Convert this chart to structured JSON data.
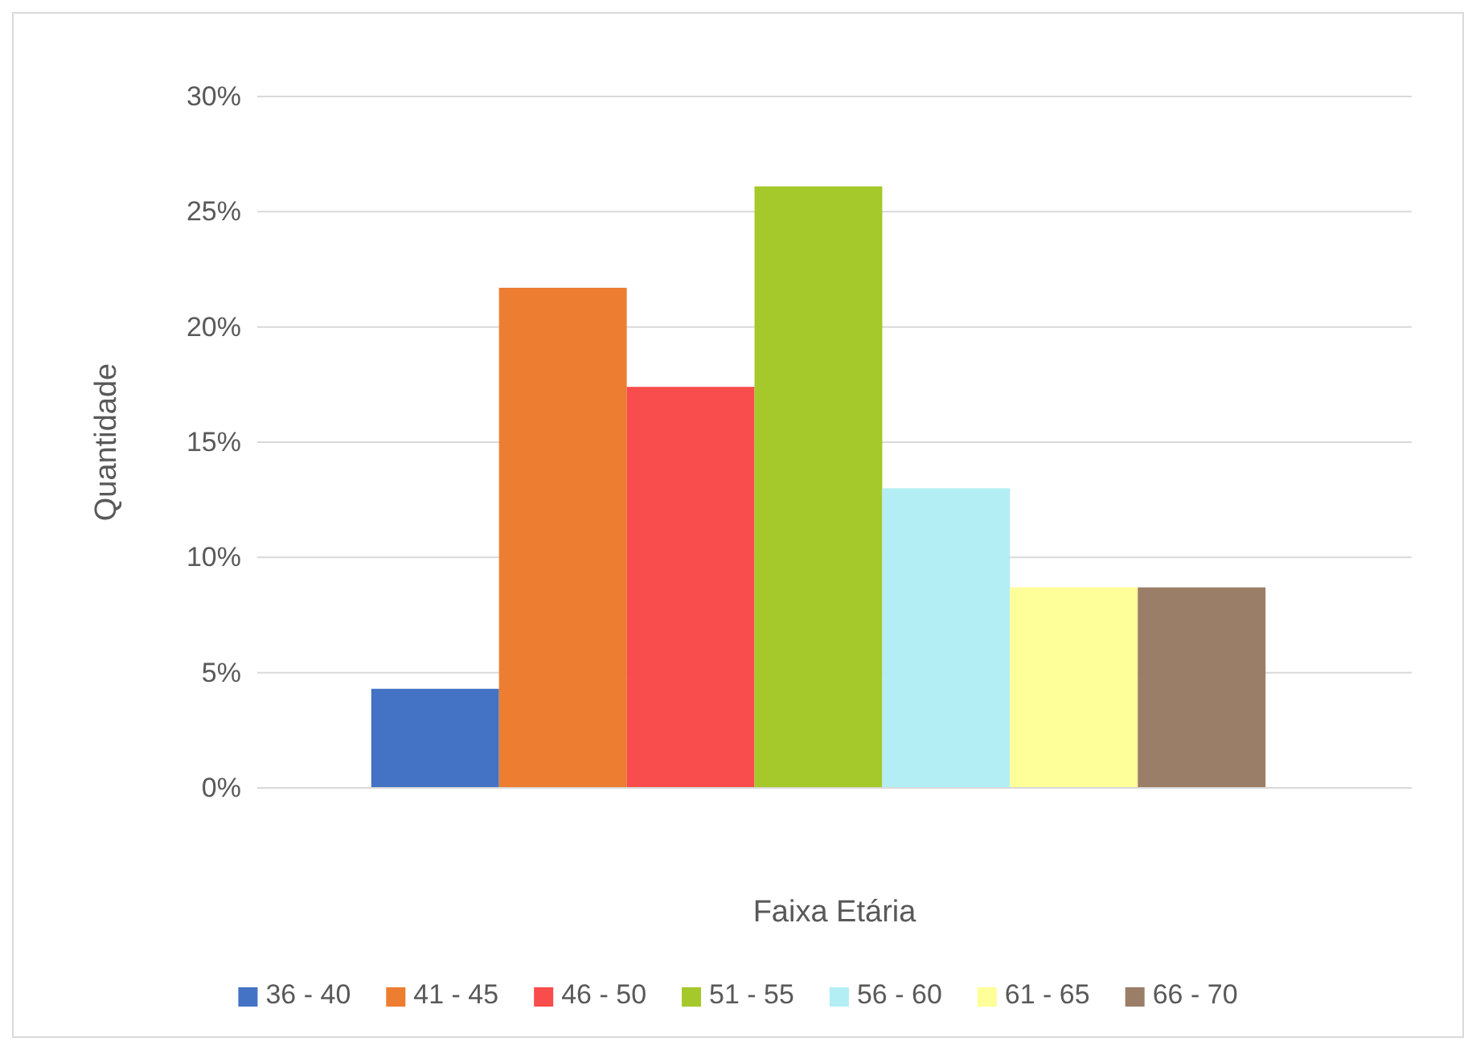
{
  "chart_data": {
    "type": "bar",
    "xlabel": "Faixa Etária",
    "ylabel": "Quantidade",
    "categories": [
      null
    ],
    "series": [
      {
        "name": "36 - 40",
        "color": "#4472c4",
        "values": [
          4.3
        ]
      },
      {
        "name": "41 - 45",
        "color": "#ed7d31",
        "values": [
          21.7
        ]
      },
      {
        "name": "46 - 50",
        "color": "#f94c4c",
        "values": [
          17.4
        ]
      },
      {
        "name": "51 - 55",
        "color": "#a5c82a",
        "values": [
          26.1
        ]
      },
      {
        "name": "56 - 60",
        "color": "#b3eef5",
        "values": [
          13.0
        ]
      },
      {
        "name": "61 - 65",
        "color": "#ffff99",
        "values": [
          8.7
        ]
      },
      {
        "name": "66 - 70",
        "color": "#9b7e67",
        "values": [
          8.7
        ]
      }
    ],
    "ylim": [
      0,
      30
    ],
    "yticks": [
      {
        "value": 0,
        "label": "0%"
      },
      {
        "value": 5,
        "label": "5%"
      },
      {
        "value": 10,
        "label": "10%"
      },
      {
        "value": 15,
        "label": "15%"
      },
      {
        "value": 20,
        "label": "20%"
      },
      {
        "value": 25,
        "label": "25%"
      },
      {
        "value": 30,
        "label": "30%"
      }
    ],
    "grid": "y",
    "legend": "bottom",
    "tick_labels": "y"
  }
}
